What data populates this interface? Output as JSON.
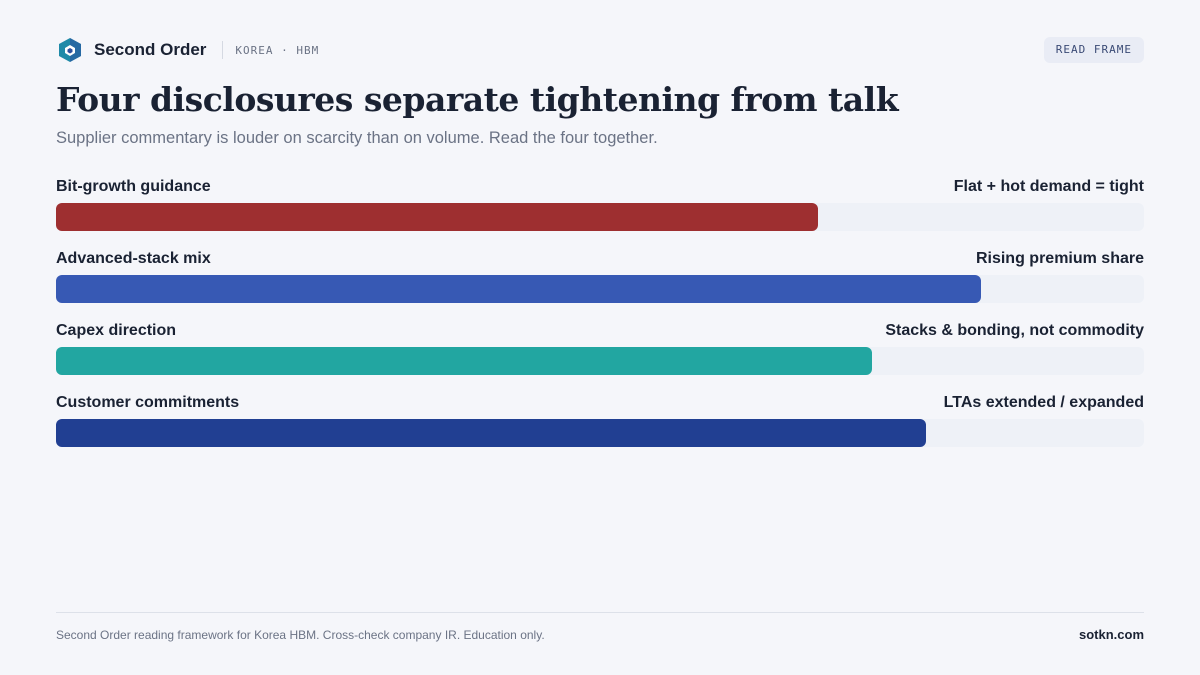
{
  "header": {
    "brand": "Second Order",
    "tag": "KOREA · HBM",
    "read_frame": "READ FRAME"
  },
  "title": "Four disclosures separate tightening from talk",
  "subtitle": "Supplier commentary is louder on scarcity than on volume. Read the four together.",
  "chart_data": {
    "type": "bar",
    "orientation": "horizontal",
    "categories": [
      "Bit-growth guidance",
      "Advanced-stack mix",
      "Capex direction",
      "Customer commitments"
    ],
    "annotations": [
      "Flat + hot demand = tight",
      "Rising premium share",
      "Stacks & bonding, not commodity",
      "LTAs extended / expanded"
    ],
    "values": [
      0.7,
      0.85,
      0.75,
      0.8
    ],
    "colors": [
      "#9e2f30",
      "#3759b4",
      "#22a6a1",
      "#213f92"
    ],
    "xlim": [
      0,
      1
    ],
    "grid": false
  },
  "footer": {
    "note": "Second Order reading framework for Korea HBM. Cross-check company IR. Education only.",
    "site": "sotkn.com"
  }
}
